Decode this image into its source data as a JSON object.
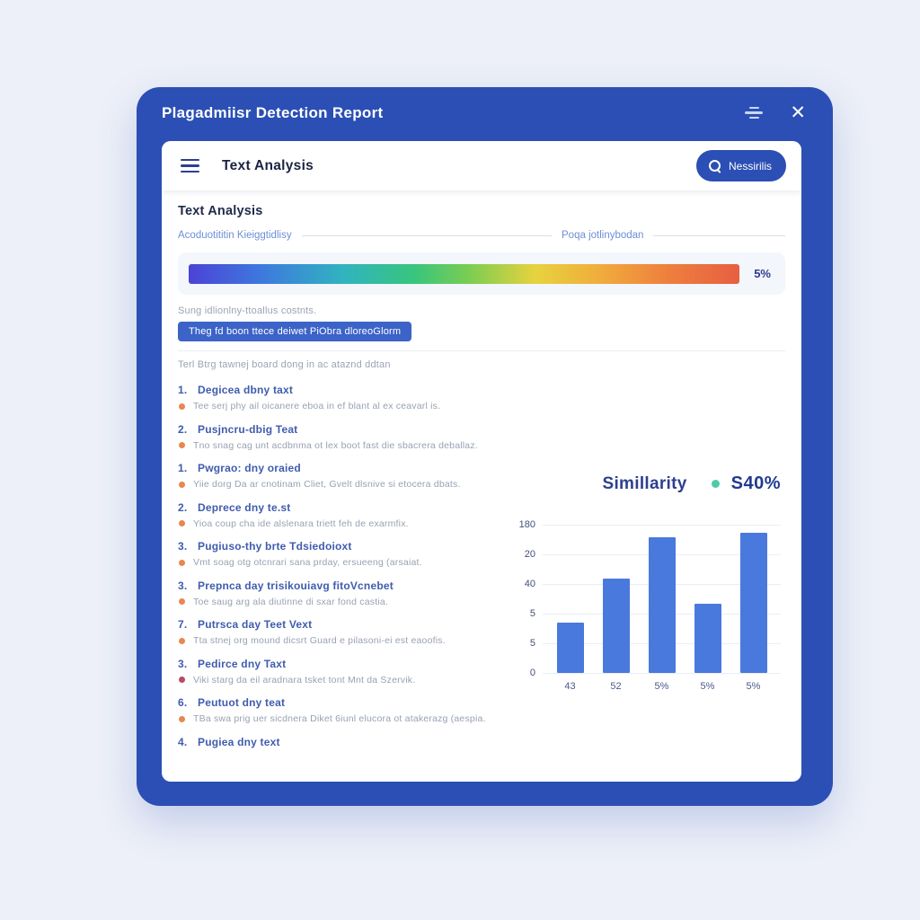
{
  "window": {
    "title": "Plagadmiisr Detection Report",
    "close_glyph": "✕"
  },
  "toolbar": {
    "title": "Text Analysis",
    "search_button": "Nessirilis"
  },
  "section": {
    "heading": "Text Analysis",
    "meta_labels": [
      "Acoduotititin Kieiggtidlisy",
      "Poqa jotlinybodan"
    ],
    "gradient_value": "5%",
    "caption_top": "Sung idlionlny-ttoallus costnts.",
    "action_button": "Theg fd boon ttece deiwet PiObra dloreoGlorm",
    "caption_bottom": "Terl Btrg tawnej board dong in ac ataznd ddtan"
  },
  "findings": [
    {
      "num": "1.",
      "title": "Degicea dbny taxt",
      "desc": "Tee serj phy ail oicanere eboa in ef blant al ex ceavarl is.",
      "bullet_color": "#e8874e"
    },
    {
      "num": "2.",
      "title": "Pusjncru-dbig Teat",
      "desc": "Tno snag cag unt acdbnma ot lex boot fast die sbacrera deballaz.",
      "bullet_color": "#e8874e"
    },
    {
      "num": "1.",
      "title": "Pwgrao: dny oraied",
      "desc": "Yiie dorg Da ar cnotinam Cliet, Gvelt dlsnive si etocera dbats.",
      "bullet_color": "#e8874e"
    },
    {
      "num": "2.",
      "title": "Deprece dny te.st",
      "desc": "Yioa coup cha ide alslenara triett feh de exarmfix.",
      "bullet_color": "#e8874e"
    },
    {
      "num": "3.",
      "title": "Pugiuso-thy brte Tdsiedoioxt",
      "desc": "Vmt soag otg otcnrari sana prday, ersueeng (arsaiat.",
      "bullet_color": "#e8874e"
    },
    {
      "num": "3.",
      "title": "Prepnca day trisikouiavg fitoVcnebet",
      "desc": "Toe saug arg ala diutinne di sxar fond castia.",
      "bullet_color": "#e8874e"
    },
    {
      "num": "7.",
      "title": "Putrsca day Teet Vext",
      "desc": "Tta stnej org mound dicsrt Guard e pilasoni-ei est eaoofis.",
      "bullet_color": "#e8874e"
    },
    {
      "num": "3.",
      "title": "Pedirce dny Taxt",
      "desc": "Viki starg da eil aradnara tsket tont Mnt da Szervik.",
      "bullet_color": "#b94b63"
    },
    {
      "num": "6.",
      "title": "Peutuot dny teat",
      "desc": "TBa swa prig uer sicdnera Diket 6iunl elucora ot atakerazg (aespia.",
      "bullet_color": "#e8874e"
    },
    {
      "num": "4.",
      "title": "Pugiea dny text",
      "desc": null,
      "bullet_color": null
    }
  ],
  "similarity": {
    "title": "Simillarity",
    "value": "S40%",
    "dot_color": "#4ecba6"
  },
  "chart_data": {
    "type": "bar",
    "title": "Simillarity",
    "legend_value": "S40%",
    "categories": [
      "43",
      "52",
      "5%",
      "5%",
      "5%"
    ],
    "values": [
      34,
      64,
      92,
      47,
      95
    ],
    "y_tick_labels": [
      "180",
      "20",
      "40",
      "5",
      "5",
      "0"
    ],
    "ylim": [
      0,
      100
    ],
    "bar_color": "#4a79de",
    "grid": true,
    "legend_position": "top-right"
  },
  "colors": {
    "window_blue": "#2b4fb4",
    "accent_button": "#3c63c8",
    "bullet_orange": "#e8874e",
    "bullet_red": "#b94b63",
    "bar_blue": "#4a79de",
    "legend_dot": "#4ecba6"
  }
}
